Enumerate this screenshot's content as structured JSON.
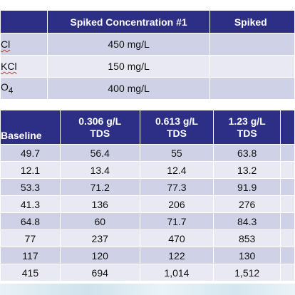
{
  "top_table": {
    "headers": [
      "",
      "Spiked Concentration #1",
      "Spiked"
    ],
    "rows": [
      {
        "label_main": "Cl",
        "label_sub": "",
        "squiggle": true,
        "value": "450 mg/L",
        "extra": ""
      },
      {
        "label_main": "KCl",
        "label_sub": "",
        "squiggle": true,
        "value": "150 mg/L",
        "extra": ""
      },
      {
        "label_main": "O",
        "label_sub": "4",
        "squiggle": false,
        "value": "400 mg/L",
        "extra": ""
      }
    ]
  },
  "bottom_table": {
    "headers": {
      "col0": "Baseline",
      "col1_line1": "0.306 g/L",
      "col1_line2": "TDS",
      "col2_line1": "0.613 g/L",
      "col2_line2": "TDS",
      "col3_line1": "1.23 g/L",
      "col3_line2": "TDS",
      "col4": ""
    },
    "rows": [
      [
        "49.7",
        "56.4",
        "55",
        "63.8"
      ],
      [
        "12.1",
        "13.4",
        "12.4",
        "13.2"
      ],
      [
        "53.3",
        "71.2",
        "77.3",
        "91.9"
      ],
      [
        "41.3",
        "136",
        "206",
        "276"
      ],
      [
        "64.8",
        "60",
        "71.7",
        "84.3"
      ],
      [
        "77",
        "237",
        "470",
        "853"
      ],
      [
        "117",
        "120",
        "122",
        "130"
      ],
      [
        "415",
        "694",
        "1,014",
        "1,512"
      ]
    ]
  },
  "colors": {
    "header_bg": "#2d2f86",
    "row_dark": "#cfd1e6",
    "row_light": "#e8e9f2"
  }
}
